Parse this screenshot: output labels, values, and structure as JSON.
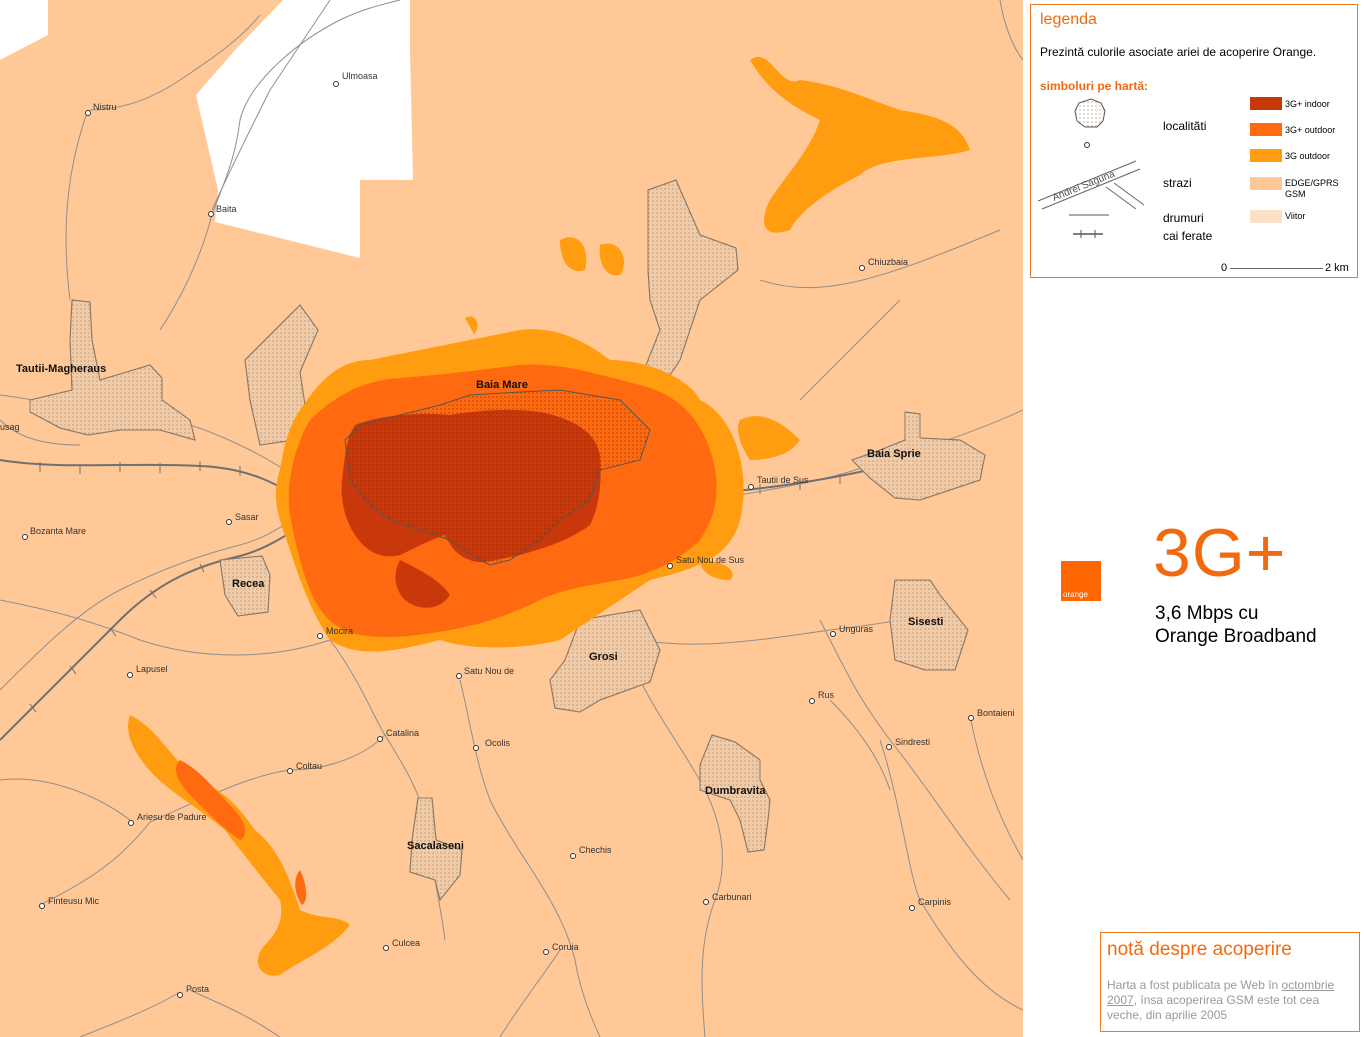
{
  "legend": {
    "title": "legenda",
    "description": "Prezintă culorile asociate ariei de acoperire Orange.",
    "symbols_title": "simboluri pe hartă:",
    "symbol_labels": {
      "localities": "localitãti",
      "streets": "strazi",
      "roads": "drumuri",
      "railways": "cai ferate",
      "street_sample": "Andrei Saguna"
    },
    "coverage": [
      {
        "label": "3G+ indoor",
        "color": "#c8380a"
      },
      {
        "label": "3G+ outdoor",
        "color": "#ff6a10"
      },
      {
        "label": "3G outdoor",
        "color": "#ff9c10"
      },
      {
        "label": "EDGE/GPRS GSM",
        "color": "#ffc896"
      },
      {
        "label": "Viitor",
        "color": "#fde0c8"
      }
    ],
    "scale": {
      "start": "0",
      "end": "2 km"
    }
  },
  "brand": {
    "logo_text": "orange",
    "color": "#ff6600"
  },
  "promo": {
    "headline": "3G+",
    "line1": "3,6 Mbps cu",
    "line2": "Orange Broadband"
  },
  "note": {
    "title": "notă despre acoperire",
    "text_before": "Harta a fost publicata pe Web în ",
    "link_text": "octombrie 2007",
    "text_after": ", însa acoperirea GSM este tot cea veche, din aprilie 2005"
  },
  "map": {
    "background_color": "#ffc896",
    "towns": [
      "Baia Mare",
      "Baia Sprie",
      "Tautii-Magheraus",
      "Recea",
      "Grosi",
      "Sisesti",
      "Dumbravita",
      "Sacalaseni"
    ],
    "places": [
      "Ulmoasa",
      "Nistru",
      "Baita",
      "Chiuzbaia",
      "usag",
      "Tautii de Sus",
      "Sasar",
      "Bozanta Mare",
      "Satu Nou de Sus",
      "Mocira",
      "Unguras",
      "Lapusel",
      "Satu Nou de",
      "Rus",
      "Bontaieni",
      "Catalina",
      "Ocolis",
      "Sindresti",
      "Coltau",
      "Ariesu de Padure",
      "Chechis",
      "Finteusu Mic",
      "Carbunari",
      "Carpinis",
      "Culcea",
      "Coruia",
      "Posta"
    ]
  }
}
